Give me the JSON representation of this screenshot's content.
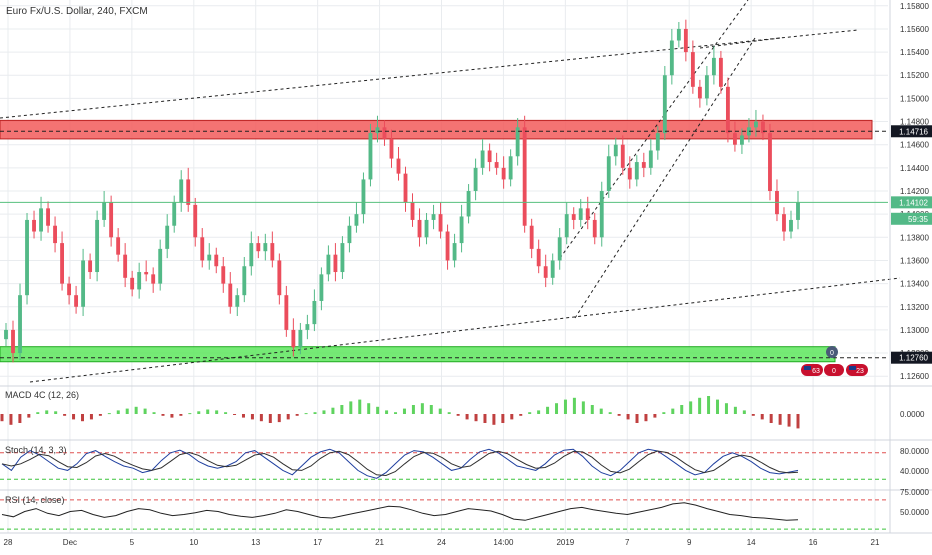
{
  "header": {
    "symbol_title": "Euro Fx/U.S. Dollar, 240, FXCM"
  },
  "colors": {
    "up": "#26a69a",
    "up_candle": "#53b987",
    "down_candle": "#eb4d5c",
    "resistance_zone": "#f25a5a",
    "support_zone": "#5de65d",
    "grid": "#e9ecef",
    "macd_up": "#5fd35f",
    "macd_down": "#c04040",
    "stoch_k": "#1f3f9f",
    "stoch_d": "#303030",
    "rsi_line": "#222222",
    "level_dashed_red": "#e05050",
    "level_dashed_green": "#3ac43a"
  },
  "price_axis": {
    "ticks": [
      "1.15800",
      "1.15600",
      "1.15400",
      "1.15200",
      "1.15000",
      "1.14800",
      "1.14600",
      "1.14400",
      "1.14200",
      "1.14000",
      "1.13800",
      "1.13600",
      "1.13400",
      "1.13200",
      "1.13000",
      "1.12800",
      "1.12600"
    ],
    "labels": [
      {
        "text": "1.14716",
        "style": "dark",
        "price": 1.14716
      },
      {
        "text": "1.14102",
        "style": "green",
        "price": 1.14102
      },
      {
        "text": "59:35",
        "style": "green-sub",
        "price": 1.1396
      },
      {
        "text": "1.12760",
        "style": "dark",
        "price": 1.1276
      }
    ]
  },
  "time_axis": {
    "ticks": [
      "28",
      "Dec",
      "5",
      "10",
      "13",
      "17",
      "21",
      "24",
      "14:00",
      "2019",
      "7",
      "9",
      "14",
      "16",
      "21"
    ]
  },
  "indicators": {
    "macd": {
      "label": "MACD 4C (12, 26)",
      "axis": [
        "0.0000"
      ]
    },
    "stoch": {
      "label": "Stoch (14, 3, 3)",
      "axis": [
        "80.0000",
        "40.0000"
      ]
    },
    "rsi": {
      "label": "RSI (14, close)",
      "axis": [
        "75.0000",
        "50.0000"
      ]
    }
  },
  "event_markers": [
    {
      "text": "0"
    },
    {
      "text": "63"
    },
    {
      "text": "0"
    },
    {
      "text": "23"
    }
  ],
  "chart_data": {
    "type": "candlestick",
    "title": "Euro Fx/U.S. Dollar, 240, FXCM",
    "ylim": [
      1.1255,
      1.1585
    ],
    "zones": [
      {
        "name": "resistance",
        "from": 1.1465,
        "to": 1.1481
      },
      {
        "name": "support",
        "from": 1.12725,
        "to": 1.12855
      }
    ],
    "levels": [
      1.14716,
      1.1276,
      1.14102
    ],
    "close_series": [
      1.13,
      1.128,
      1.133,
      1.1395,
      1.1385,
      1.1405,
      1.139,
      1.1375,
      1.134,
      1.133,
      1.132,
      1.136,
      1.135,
      1.1395,
      1.141,
      1.138,
      1.1365,
      1.1345,
      1.1335,
      1.135,
      1.1348,
      1.134,
      1.137,
      1.139,
      1.141,
      1.143,
      1.1408,
      1.138,
      1.136,
      1.1365,
      1.1355,
      1.134,
      1.132,
      1.133,
      1.1355,
      1.1375,
      1.1368,
      1.1375,
      1.136,
      1.133,
      1.13,
      1.1285,
      1.13,
      1.1305,
      1.1325,
      1.1348,
      1.1365,
      1.135,
      1.1375,
      1.139,
      1.14,
      1.143,
      1.147,
      1.1475,
      1.1465,
      1.1448,
      1.1435,
      1.141,
      1.1395,
      1.138,
      1.1395,
      1.14,
      1.1385,
      1.136,
      1.1375,
      1.1398,
      1.142,
      1.144,
      1.1455,
      1.1445,
      1.144,
      1.143,
      1.145,
      1.1475,
      1.139,
      1.137,
      1.1355,
      1.1345,
      1.136,
      1.138,
      1.14,
      1.1395,
      1.1405,
      1.1395,
      1.138,
      1.142,
      1.145,
      1.146,
      1.144,
      1.143,
      1.1445,
      1.144,
      1.1455,
      1.147,
      1.152,
      1.155,
      1.156,
      1.154,
      1.151,
      1.15,
      1.152,
      1.1535,
      1.151,
      1.147,
      1.146,
      1.1468,
      1.1475,
      1.148,
      1.147,
      1.142,
      1.14,
      1.1385,
      1.1395,
      1.141
    ],
    "macd_hist": [
      -0.4,
      -0.6,
      -0.5,
      -0.2,
      0.1,
      0.2,
      0.15,
      -0.1,
      -0.3,
      -0.4,
      -0.3,
      -0.1,
      0.05,
      0.2,
      0.3,
      0.4,
      0.3,
      0.1,
      -0.1,
      -0.2,
      -0.1,
      0.05,
      0.15,
      0.25,
      0.2,
      0.1,
      -0.05,
      -0.2,
      -0.3,
      -0.4,
      -0.5,
      -0.45,
      -0.3,
      -0.1,
      0.05,
      0.1,
      0.2,
      0.35,
      0.5,
      0.7,
      0.8,
      0.6,
      0.4,
      0.2,
      0.1,
      0.3,
      0.5,
      0.6,
      0.5,
      0.3,
      0.1,
      -0.1,
      -0.3,
      -0.4,
      -0.5,
      -0.6,
      -0.5,
      -0.3,
      -0.1,
      0.1,
      0.2,
      0.4,
      0.6,
      0.8,
      0.9,
      0.7,
      0.5,
      0.3,
      0.1,
      -0.1,
      -0.3,
      -0.5,
      -0.4,
      -0.2,
      0.1,
      0.3,
      0.5,
      0.7,
      0.9,
      1.0,
      0.8,
      0.6,
      0.4,
      0.2,
      -0.1,
      -0.3,
      -0.5,
      -0.6,
      -0.7,
      -0.8
    ],
    "stoch_k": [
      55,
      40,
      70,
      85,
      75,
      60,
      45,
      40,
      55,
      78,
      85,
      72,
      60,
      50,
      45,
      35,
      40,
      62,
      80,
      86,
      76,
      60,
      50,
      45,
      50,
      60,
      80,
      85,
      70,
      55,
      40,
      30,
      50,
      70,
      82,
      88,
      80,
      60,
      40,
      28,
      22,
      35,
      55,
      75,
      85,
      82,
      70,
      55,
      40,
      45,
      65,
      82,
      88,
      80,
      65,
      50,
      45,
      40,
      55,
      75,
      86,
      88,
      72,
      50,
      35,
      28,
      40,
      60,
      80,
      88,
      84,
      70,
      55,
      40,
      30,
      35,
      55,
      72,
      80,
      72,
      60,
      45,
      35,
      32,
      36,
      40
    ],
    "rsi": [
      50,
      46,
      55,
      60,
      52,
      48,
      55,
      57,
      50,
      45,
      48,
      55,
      60,
      58,
      52,
      48,
      50,
      53,
      57,
      55,
      50,
      47,
      45,
      48,
      52,
      58,
      55,
      50,
      45,
      44,
      48,
      52,
      56,
      60,
      64,
      63,
      58,
      52,
      48,
      50,
      55,
      60,
      58,
      56,
      50,
      42,
      40,
      45,
      50,
      55,
      60,
      62,
      58,
      55,
      52,
      50,
      54,
      58,
      62,
      68,
      70,
      66,
      60,
      55,
      50,
      48,
      45,
      44,
      42,
      40,
      41
    ]
  }
}
